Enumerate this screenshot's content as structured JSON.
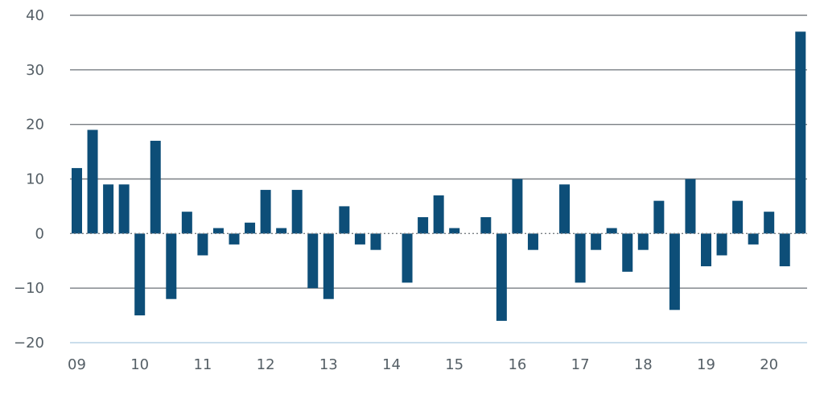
{
  "chart_data": {
    "type": "bar",
    "title": "",
    "xlabel": "",
    "ylabel": "",
    "ylim": [
      -20,
      40
    ],
    "yticks": [
      -20,
      -10,
      0,
      10,
      20,
      30,
      40
    ],
    "ytick_labels": [
      "−20",
      "−10",
      "0",
      "10",
      "20",
      "30",
      "40"
    ],
    "xtick_labels": [
      "09",
      "10",
      "11",
      "12",
      "13",
      "14",
      "15",
      "16",
      "17",
      "18",
      "19",
      "20"
    ],
    "bars_per_year": 4,
    "grid": true,
    "color": "#0d4e78",
    "values": [
      12,
      19,
      9,
      9,
      -15,
      17,
      -12,
      4,
      -4,
      1,
      -2,
      2,
      8,
      1,
      8,
      -10,
      -12,
      5,
      -2,
      -3,
      0,
      -9,
      3,
      7,
      1,
      0,
      3,
      -16,
      10,
      -3,
      0,
      9,
      -9,
      -3,
      1,
      -7,
      -3,
      6,
      -14,
      10,
      -6,
      -4,
      6,
      -2,
      4,
      -6,
      37
    ]
  }
}
